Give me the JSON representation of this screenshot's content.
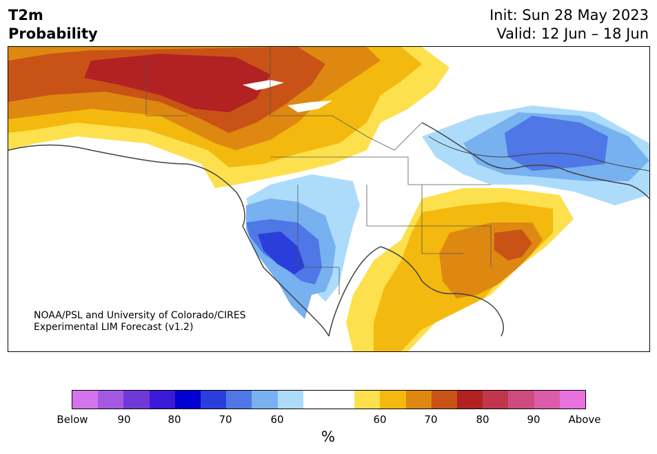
{
  "title": {
    "line1": "T2m",
    "line2": "Probability",
    "init": "Init: Sun 28 May 2023",
    "valid": "Valid: 12 Jun – 18 Jun"
  },
  "credit": {
    "line1": "NOAA/PSL and University of Colorado/CIRES",
    "line2": "Experimental LIM Forecast (v1.2)"
  },
  "colorbar": {
    "colors": [
      "#d474ec",
      "#a459e3",
      "#7138d8",
      "#3a1ad6",
      "#0000d0",
      "#2a3edb",
      "#4f77e6",
      "#77b1f0",
      "#addcfb",
      "#ffffff",
      "#ffffff",
      "#fde04d",
      "#f3b90e",
      "#de8811",
      "#c95316",
      "#b22222",
      "#c0364d",
      "#ce4b7b",
      "#db5ca8",
      "#e771de"
    ],
    "tick_labels": [
      "Below",
      "90",
      "80",
      "70",
      "60",
      "60",
      "70",
      "80",
      "90",
      "Above"
    ],
    "unit": "%"
  }
}
